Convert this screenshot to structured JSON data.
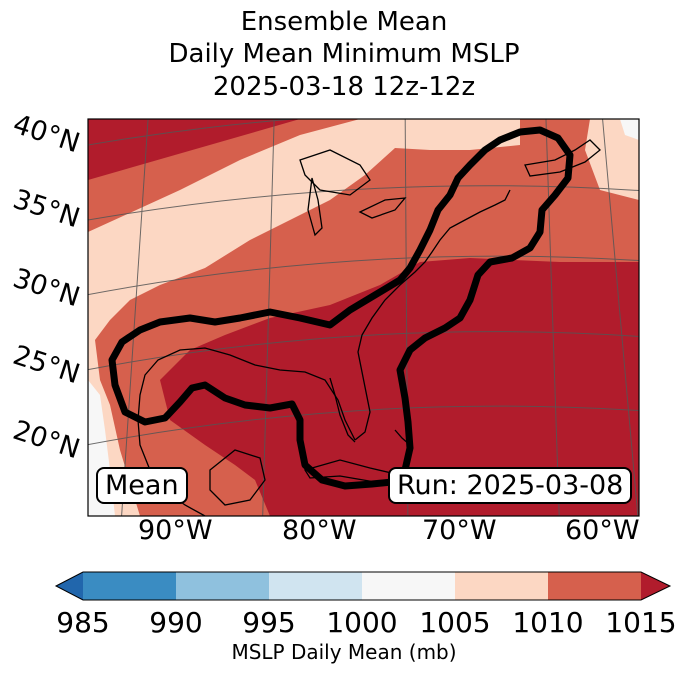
{
  "title": {
    "line1": "Ensemble Mean",
    "line2": "Daily Mean Minimum MSLP",
    "line3": "2025-03-18 12z-12z"
  },
  "map": {
    "lat_labels": [
      "40°N",
      "35°N",
      "30°N",
      "25°N",
      "20°N"
    ],
    "lon_labels": [
      "90°W",
      "80°W",
      "70°W",
      "60°W"
    ],
    "mean_label": "Mean",
    "run_label": "Run: 2025-03-08",
    "contour_color": "#000000"
  },
  "colorbar": {
    "ticks": [
      "985",
      "990",
      "995",
      "1000",
      "1005",
      "1010",
      "1015"
    ],
    "colors": [
      "#3a8cc2",
      "#8fc1de",
      "#d0e4f0",
      "#f7f7f7",
      "#fcd7c3",
      "#d6604d",
      "#b11c2c"
    ],
    "under_color": "#2166ac",
    "label": "MSLP Daily Mean (mb)"
  }
}
